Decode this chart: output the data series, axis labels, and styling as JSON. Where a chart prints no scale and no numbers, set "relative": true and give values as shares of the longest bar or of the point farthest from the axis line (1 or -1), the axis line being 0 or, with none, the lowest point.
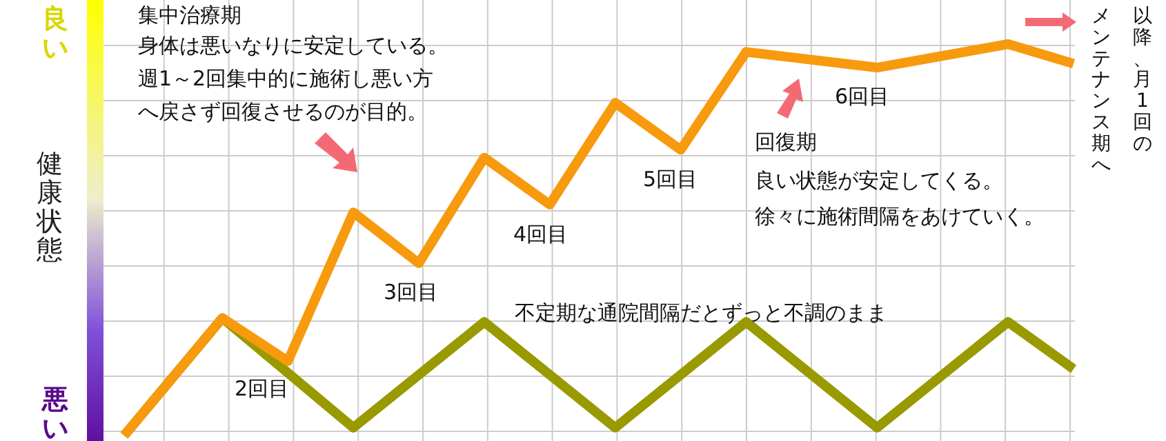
{
  "chart_data": {
    "type": "line",
    "relative": true,
    "ylabel": "健康状態",
    "grid": true,
    "categories": [
      null,
      null,
      null,
      null,
      null,
      null,
      null,
      null,
      null,
      null,
      null,
      null,
      null,
      null,
      null,
      null,
      null,
      null,
      null,
      null,
      null,
      null,
      null,
      null,
      null,
      null,
      null,
      null,
      null,
      null
    ],
    "series": [
      {
        "color": "#999900",
        "values": [
          0,
          null,
          null,
          0.3,
          null,
          null,
          null,
          0.02,
          null,
          null,
          null,
          0.29,
          null,
          null,
          null,
          0.02,
          null,
          null,
          null,
          0.29,
          null,
          null,
          null,
          0.02,
          null,
          null,
          null,
          0.29,
          null,
          0.17
        ]
      },
      {
        "color": "#f79a0e",
        "values": [
          0,
          null,
          null,
          0.3,
          null,
          0.19,
          null,
          0.57,
          null,
          0.44,
          null,
          0.71,
          null,
          0.59,
          null,
          0.85,
          null,
          0.73,
          null,
          0.98,
          null,
          null,
          null,
          0.94,
          null,
          null,
          null,
          1,
          null,
          0.95
        ]
      }
    ],
    "annotations": [
      "集中治療期",
      "身体は悪いなりに安定している。",
      "週1～2回集中的に施術し悪い方",
      "へ戻さず回復させるのが目的。",
      "2回目",
      "3回目",
      "4回目",
      "5回目",
      "6回目",
      "回復期",
      "良い状態が安定してくる。",
      "徐々に施術間隔をあけていく。",
      "不定期な通院間隔だとずっと不調のまま",
      "以降、月1回の",
      "メンテナンス期へ",
      "良い",
      "悪い"
    ]
  }
}
